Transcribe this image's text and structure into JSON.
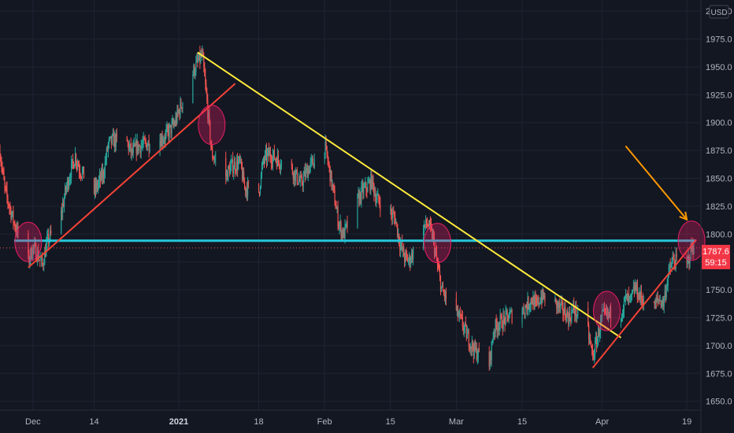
{
  "currency_label": "USD",
  "price_badge": {
    "price": "1787.6",
    "countdown": "59:15"
  },
  "colors": {
    "background": "#131722",
    "grid": "#1f2433",
    "candle_up": "#26a69a",
    "candle_down": "#ef5350",
    "support_line": "#26c6da",
    "trend_line_yellow": "#ffeb3b",
    "trend_line_red": "#f44336",
    "arrow": "#ff9800",
    "highlight_circle": "#e91e63",
    "badge": "#f23645"
  },
  "chart_data": {
    "type": "candlestick",
    "title": "",
    "ylim": [
      1642,
      2010
    ],
    "y_ticks": [
      1650,
      1675,
      1700,
      1725,
      1750,
      1775,
      1800,
      1825,
      1850,
      1875,
      1900,
      1925,
      1950,
      1975,
      2000
    ],
    "y_tick_labels": [
      "1650.0",
      "1675.0",
      "1700.0",
      "1725.0",
      "1750.0",
      "",
      "1800.0",
      "1825.0",
      "1850.0",
      "1875.0",
      "1900.0",
      "1925.0",
      "1950.0",
      "1975.0",
      "2000.0"
    ],
    "x_range": [
      "2020-11-24",
      "2021-04-22"
    ],
    "x_ticks": [
      {
        "date": "2020-12-01",
        "label": "Dec"
      },
      {
        "date": "2020-12-14",
        "label": "14"
      },
      {
        "date": "2021-01-01",
        "label": "2021",
        "bold": true
      },
      {
        "date": "2021-01-18",
        "label": "18"
      },
      {
        "date": "2021-02-01",
        "label": "Feb"
      },
      {
        "date": "2021-02-15",
        "label": "15"
      },
      {
        "date": "2021-03-01",
        "label": "Mar"
      },
      {
        "date": "2021-03-15",
        "label": "15"
      },
      {
        "date": "2021-04-01",
        "label": "Apr"
      },
      {
        "date": "2021-04-19",
        "label": "19"
      }
    ],
    "price_path": [
      [
        "2020-11-24",
        1874
      ],
      [
        "2020-11-25",
        1840
      ],
      [
        "2020-11-27",
        1810
      ],
      [
        "2020-11-30",
        1776
      ],
      [
        "2020-12-01",
        1788
      ],
      [
        "2020-12-02",
        1782
      ],
      [
        "2020-12-03",
        1772
      ],
      [
        "2020-12-04",
        1792
      ],
      [
        "2020-12-07",
        1818
      ],
      [
        "2020-12-08",
        1840
      ],
      [
        "2020-12-09",
        1856
      ],
      [
        "2020-12-10",
        1870
      ],
      [
        "2020-12-11",
        1858
      ],
      [
        "2020-12-14",
        1838
      ],
      [
        "2020-12-15",
        1846
      ],
      [
        "2020-12-16",
        1855
      ],
      [
        "2020-12-17",
        1880
      ],
      [
        "2020-12-18",
        1884
      ],
      [
        "2020-12-21",
        1882
      ],
      [
        "2020-12-22",
        1872
      ],
      [
        "2020-12-23",
        1878
      ],
      [
        "2020-12-28",
        1885
      ],
      [
        "2020-12-29",
        1887
      ],
      [
        "2020-12-31",
        1898
      ],
      [
        "2021-01-04",
        1945
      ],
      [
        "2021-01-05",
        1954
      ],
      [
        "2021-01-06",
        1960
      ],
      [
        "2021-01-07",
        1918
      ],
      [
        "2021-01-08",
        1872
      ],
      [
        "2021-01-11",
        1852
      ],
      [
        "2021-01-12",
        1860
      ],
      [
        "2021-01-14",
        1864
      ],
      [
        "2021-01-15",
        1842
      ],
      [
        "2021-01-18",
        1838
      ],
      [
        "2021-01-19",
        1866
      ],
      [
        "2021-01-20",
        1871
      ],
      [
        "2021-01-21",
        1870
      ],
      [
        "2021-01-25",
        1858
      ],
      [
        "2021-01-27",
        1845
      ],
      [
        "2021-01-28",
        1855
      ],
      [
        "2021-02-01",
        1880
      ],
      [
        "2021-02-02",
        1858
      ],
      [
        "2021-02-03",
        1834
      ],
      [
        "2021-02-04",
        1810
      ],
      [
        "2021-02-05",
        1799
      ],
      [
        "2021-02-08",
        1830
      ],
      [
        "2021-02-09",
        1838
      ],
      [
        "2021-02-10",
        1842
      ],
      [
        "2021-02-11",
        1848
      ],
      [
        "2021-02-12",
        1832
      ],
      [
        "2021-02-16",
        1814
      ],
      [
        "2021-02-17",
        1792
      ],
      [
        "2021-02-18",
        1779
      ],
      [
        "2021-02-19",
        1776
      ],
      [
        "2021-02-22",
        1807
      ],
      [
        "2021-02-23",
        1809
      ],
      [
        "2021-02-24",
        1797
      ],
      [
        "2021-02-25",
        1771
      ],
      [
        "2021-02-26",
        1748
      ],
      [
        "2021-03-01",
        1730
      ],
      [
        "2021-03-02",
        1722
      ],
      [
        "2021-03-03",
        1712
      ],
      [
        "2021-03-04",
        1702
      ],
      [
        "2021-03-05",
        1695
      ],
      [
        "2021-03-08",
        1683
      ],
      [
        "2021-03-09",
        1715
      ],
      [
        "2021-03-10",
        1720
      ],
      [
        "2021-03-11",
        1722
      ],
      [
        "2021-03-12",
        1726
      ],
      [
        "2021-03-15",
        1731
      ],
      [
        "2021-03-16",
        1736
      ],
      [
        "2021-03-17",
        1742
      ],
      [
        "2021-03-18",
        1735
      ],
      [
        "2021-03-19",
        1744
      ],
      [
        "2021-03-22",
        1738
      ],
      [
        "2021-03-23",
        1734
      ],
      [
        "2021-03-24",
        1730
      ],
      [
        "2021-03-25",
        1725
      ],
      [
        "2021-03-26",
        1733
      ],
      [
        "2021-03-29",
        1712
      ],
      [
        "2021-03-30",
        1690
      ],
      [
        "2021-03-31",
        1707
      ],
      [
        "2021-04-01",
        1726
      ],
      [
        "2021-04-05",
        1730
      ],
      [
        "2021-04-06",
        1742
      ],
      [
        "2021-04-07",
        1739
      ],
      [
        "2021-04-08",
        1752
      ],
      [
        "2021-04-09",
        1744
      ],
      [
        "2021-04-12",
        1734
      ],
      [
        "2021-04-13",
        1742
      ],
      [
        "2021-04-14",
        1738
      ],
      [
        "2021-04-15",
        1762
      ],
      [
        "2021-04-16",
        1776
      ],
      [
        "2021-04-19",
        1772
      ],
      [
        "2021-04-20",
        1787.6
      ]
    ],
    "support_level": 1794,
    "current_price": 1787.6,
    "trend_lines": [
      {
        "name": "red-rising-dec",
        "color": "red",
        "from": [
          "2020-11-30",
          1770
        ],
        "to": [
          "2021-01-13",
          1935
        ]
      },
      {
        "name": "yellow-falling",
        "color": "yellow",
        "from": [
          "2021-01-05",
          1963
        ],
        "to": [
          "2021-04-05",
          1707
        ]
      },
      {
        "name": "red-rising-apr",
        "color": "red",
        "from": [
          "2021-03-30",
          1680
        ],
        "to": [
          "2021-04-21",
          1795
        ]
      }
    ],
    "highlight_circles": [
      {
        "at": [
          "2020-11-30",
          1793
        ]
      },
      {
        "at": [
          "2021-01-08",
          1898
        ]
      },
      {
        "at": [
          "2021-02-25",
          1792
        ]
      },
      {
        "at": [
          "2021-04-02",
          1731
        ]
      },
      {
        "at": [
          "2021-04-20",
          1794
        ]
      }
    ],
    "arrow": {
      "from": [
        "2021-04-06",
        1879
      ],
      "to": [
        "2021-04-19",
        1813
      ]
    }
  }
}
